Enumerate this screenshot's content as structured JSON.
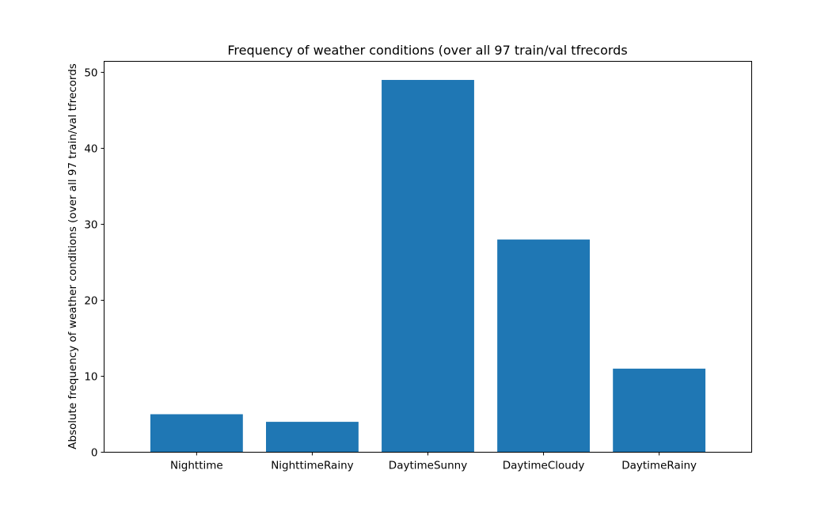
{
  "chart_data": {
    "type": "bar",
    "title": "Frequency of weather conditions (over all 97 train/val tfrecords",
    "xlabel": "",
    "ylabel": "Absolute frequency of weather conditions (over all 97 train/val tfrecords",
    "categories": [
      "Nighttime",
      "NighttimeRainy",
      "DaytimeSunny",
      "DaytimeCloudy",
      "DaytimeRainy"
    ],
    "values": [
      5,
      4,
      49,
      28,
      11
    ],
    "ylim": [
      0,
      51.45
    ],
    "yticks": [
      0,
      10,
      20,
      30,
      40,
      50
    ],
    "grid": false,
    "bar_color": "#1f77b4"
  }
}
